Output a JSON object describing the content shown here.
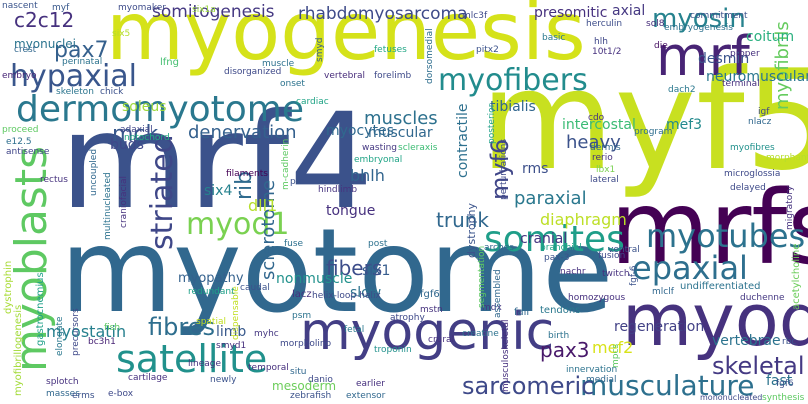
{
  "words": [
    {
      "text": "myogenesis",
      "color": "#d5e21a"
    },
    {
      "text": "mrf4",
      "color": "#3b528b"
    },
    {
      "text": "myf5",
      "color": "#c8e020"
    },
    {
      "text": "myotome",
      "color": "#31688e"
    },
    {
      "text": "mrfs",
      "color": "#440154"
    },
    {
      "text": "myod",
      "color": "#46327e"
    },
    {
      "text": "mrf",
      "color": "#482475"
    },
    {
      "text": "dermomyotome",
      "color": "#2a788e"
    },
    {
      "text": "myogenic",
      "color": "#433e85"
    },
    {
      "text": "myoblasts",
      "color": "#5ec962"
    },
    {
      "text": "satellite",
      "color": "#21918c"
    },
    {
      "text": "somites",
      "color": "#1f9e89"
    },
    {
      "text": "myofibers",
      "color": "#228c8d"
    },
    {
      "text": "myotubes",
      "color": "#2c728e"
    },
    {
      "text": "epaxial",
      "color": "#2e6f8e"
    },
    {
      "text": "hypaxial",
      "color": "#39568c"
    },
    {
      "text": "pax7",
      "color": "#35608d"
    },
    {
      "text": "myod1",
      "color": "#7ad151"
    },
    {
      "text": "striated",
      "color": "#3f4788"
    },
    {
      "text": "myosin",
      "color": "#26828e"
    },
    {
      "text": "musculature",
      "color": "#2d708e"
    },
    {
      "text": "sarcomeric",
      "color": "#3e4989"
    },
    {
      "text": "skeletal",
      "color": "#443983"
    },
    {
      "text": "somitogenesis",
      "color": "#453882"
    },
    {
      "text": "rhabdomyosarcoma",
      "color": "#3e4a89"
    },
    {
      "text": "c2c12",
      "color": "#46317e"
    },
    {
      "text": "fibres",
      "color": "#2e6e8e"
    },
    {
      "text": "myostatin",
      "color": "#27808e"
    },
    {
      "text": "myf6",
      "color": "#404688"
    },
    {
      "text": "heavy",
      "color": "#3b528b"
    },
    {
      "text": "fibers",
      "color": "#3d4d8a"
    },
    {
      "text": "pax3",
      "color": "#48186a"
    },
    {
      "text": "rib",
      "color": "#2f6b8e"
    },
    {
      "text": "sclerotome",
      "color": "#31678e"
    },
    {
      "text": "denervation",
      "color": "#34608d"
    },
    {
      "text": "muscles",
      "color": "#2d718e"
    },
    {
      "text": "mck",
      "color": "#38588c"
    },
    {
      "text": "myofibrils",
      "color": "#65cb5e"
    },
    {
      "text": "trunk",
      "color": "#31688e"
    },
    {
      "text": "paraxial",
      "color": "#2a788e"
    },
    {
      "text": "diaphragm",
      "color": "#bddf26"
    },
    {
      "text": "soleus",
      "color": "#9fda3a"
    },
    {
      "text": "desmin",
      "color": "#3a548c"
    },
    {
      "text": "neuromuscular",
      "color": "#2a778e"
    },
    {
      "text": "presomitic",
      "color": "#46307e"
    },
    {
      "text": "axial",
      "color": "#453882"
    },
    {
      "text": "coitum",
      "color": "#2ab07f"
    },
    {
      "text": "myocytes",
      "color": "#30698e"
    },
    {
      "text": "contractile",
      "color": "#2d708e"
    },
    {
      "text": "muscular",
      "color": "#31688e"
    },
    {
      "text": "intercostal",
      "color": "#3bbb75"
    },
    {
      "text": "tibialis",
      "color": "#31668e"
    },
    {
      "text": "mef3",
      "color": "#238a8d"
    },
    {
      "text": "mef2",
      "color": "#d8e219"
    },
    {
      "text": "bhlh",
      "color": "#32658e"
    },
    {
      "text": "six4",
      "color": "#26828e"
    },
    {
      "text": "dll1",
      "color": "#b5de2b"
    },
    {
      "text": "six1",
      "color": "#365c8d"
    },
    {
      "text": "slow",
      "color": "#2c728e"
    },
    {
      "text": "rms",
      "color": "#3c4f8a"
    },
    {
      "text": "cranial",
      "color": "#453581"
    },
    {
      "text": "dystrophy",
      "color": "#3a538b"
    },
    {
      "text": "myopathy",
      "color": "#34618d"
    },
    {
      "text": "nonmuscle",
      "color": "#21918c"
    },
    {
      "text": "tongue",
      "color": "#46307e"
    },
    {
      "text": "myonuclei",
      "color": "#2b748e"
    },
    {
      "text": "buds",
      "color": "#3f4889"
    },
    {
      "text": "limb",
      "color": "#38598c"
    },
    {
      "text": "regeneration",
      "color": "#424186"
    },
    {
      "text": "vertebrae",
      "color": "#2c738e"
    },
    {
      "text": "fast",
      "color": "#2c738e"
    },
    {
      "text": "mesoderm",
      "color": "#6ccd5a"
    },
    {
      "text": "dystrophin",
      "color": "#1fa088"
    },
    {
      "text": "myofibrillogenesis",
      "color": "#a8db34"
    },
    {
      "text": "dispensable",
      "color": "#a2da37"
    },
    {
      "text": "acetylcholine",
      "color": "#c2df23"
    },
    {
      "text": "migratory",
      "color": "#6ccd5a"
    },
    {
      "text": "gastrocnemius",
      "color": "#46337f"
    },
    {
      "text": "myf",
      "color": "#38588c"
    },
    {
      "text": "myomaker",
      "color": "#3e4c8a"
    },
    {
      "text": "six1a",
      "color": "#9bd93c"
    },
    {
      "text": "herculin",
      "color": "#3d4d8a"
    },
    {
      "text": "commitment",
      "color": "#3b528b"
    },
    {
      "text": "embryogenesis",
      "color": "#2d718e"
    },
    {
      "text": "nascent",
      "color": "#3a548c"
    },
    {
      "text": "crest",
      "color": "#31678e"
    },
    {
      "text": "embryo",
      "color": "#482677"
    },
    {
      "text": "perinatal",
      "color": "#2c738e"
    },
    {
      "text": "lfng",
      "color": "#44bf70"
    },
    {
      "text": "skeleton",
      "color": "#2b758e"
    },
    {
      "text": "chick",
      "color": "#3b518b"
    },
    {
      "text": "disorganized",
      "color": "#3e4989"
    },
    {
      "text": "onset",
      "color": "#2c738e"
    },
    {
      "text": "vertebral",
      "color": "#472c7a"
    },
    {
      "text": "forelimb",
      "color": "#3e4a89"
    },
    {
      "text": "fetuses",
      "color": "#22a785"
    },
    {
      "text": "dorsomedial",
      "color": "#2e6e8e"
    },
    {
      "text": "pitx2",
      "color": "#3b528b"
    },
    {
      "text": "basic",
      "color": "#2a788e"
    },
    {
      "text": "hlh",
      "color": "#3f4788"
    },
    {
      "text": "10t1/2",
      "color": "#46307e"
    },
    {
      "text": "die",
      "color": "#471063"
    },
    {
      "text": "proper",
      "color": "#46307e"
    },
    {
      "text": "terminal",
      "color": "#46307e"
    },
    {
      "text": "dach2",
      "color": "#2a788e"
    },
    {
      "text": "smyd",
      "color": "#355e8d"
    },
    {
      "text": "mlc3f",
      "color": "#3e4a89"
    },
    {
      "text": "sol8",
      "color": "#472d7b"
    },
    {
      "text": "six5",
      "color": "#b5de2b"
    },
    {
      "text": "muscle",
      "color": "#2d718e"
    },
    {
      "text": "proceed",
      "color": "#5ec962"
    },
    {
      "text": "notochord",
      "color": "#25ab82"
    },
    {
      "text": "adaxial",
      "color": "#404588"
    },
    {
      "text": "cardiac",
      "color": "#20a486"
    },
    {
      "text": "scleraxis",
      "color": "#3dbc74"
    },
    {
      "text": "cdo",
      "color": "#46337f"
    },
    {
      "text": "program",
      "color": "#2e6e8e"
    },
    {
      "text": "igf",
      "color": "#3e4989"
    },
    {
      "text": "nlacz",
      "color": "#31688e"
    },
    {
      "text": "myofibres",
      "color": "#21918c"
    },
    {
      "text": "dermis",
      "color": "#31688e"
    },
    {
      "text": "rerio",
      "color": "#46327e"
    },
    {
      "text": "lbx1",
      "color": "#7ad151"
    },
    {
      "text": "lateral",
      "color": "#3e4a89"
    },
    {
      "text": "e12.5",
      "color": "#2e6f8e"
    },
    {
      "text": "antisense",
      "color": "#404588"
    },
    {
      "text": "wasting",
      "color": "#453882"
    },
    {
      "text": "embryonal",
      "color": "#20a486"
    },
    {
      "text": "filaments",
      "color": "#440154"
    },
    {
      "text": "p.c",
      "color": "#3b528b"
    },
    {
      "text": "hindlimb",
      "color": "#46337f"
    },
    {
      "text": "m-cadherin",
      "color": "#5ec962"
    },
    {
      "text": "uncoupled",
      "color": "#31688e"
    },
    {
      "text": "multinucleated",
      "color": "#2c728e"
    },
    {
      "text": "craniofacial",
      "color": "#46327e"
    },
    {
      "text": "fuse",
      "color": "#2d708e"
    },
    {
      "text": "rectus",
      "color": "#46327e"
    },
    {
      "text": "post",
      "color": "#2d718e"
    },
    {
      "text": "posterior",
      "color": "#1fa088"
    },
    {
      "text": "arches",
      "color": "#31688e"
    },
    {
      "text": "branchial",
      "color": "#20a486"
    },
    {
      "text": "pax-3",
      "color": "#3b528b"
    },
    {
      "text": "nachr",
      "color": "#46307e"
    },
    {
      "text": "fusion",
      "color": "#3e4a89"
    },
    {
      "text": "twitch",
      "color": "#46307e"
    },
    {
      "text": "ventral",
      "color": "#3b528b"
    },
    {
      "text": "fgf-6",
      "color": "#3b528b"
    },
    {
      "text": "microglossia",
      "color": "#3e4989"
    },
    {
      "text": "delayed",
      "color": "#3e4a89"
    },
    {
      "text": "undifferentiated",
      "color": "#2c738e"
    },
    {
      "text": "duchenne",
      "color": "#453882"
    },
    {
      "text": "helix-loop-helix",
      "color": "#3e4a89"
    },
    {
      "text": "mdx",
      "color": "#453882"
    },
    {
      "text": "fail",
      "color": "#31688e"
    },
    {
      "text": "tendons",
      "color": "#2a788e"
    },
    {
      "text": "redundant",
      "color": "#1fa088"
    },
    {
      "text": "caudal",
      "color": "#3b528b"
    },
    {
      "text": "lacz",
      "color": "#46307e"
    },
    {
      "text": "fgf6",
      "color": "#31688e"
    },
    {
      "text": "psm",
      "color": "#2c738e"
    },
    {
      "text": "fetal",
      "color": "#2a788e"
    },
    {
      "text": "atrophy",
      "color": "#3e4989"
    },
    {
      "text": "mstn",
      "color": "#46327e"
    },
    {
      "text": "mlclf",
      "color": "#31688e"
    },
    {
      "text": "homozygous",
      "color": "#46307e"
    },
    {
      "text": "elongate",
      "color": "#2a788e"
    },
    {
      "text": "precursors",
      "color": "#3e4989"
    },
    {
      "text": "bc3h1",
      "color": "#482475"
    },
    {
      "text": "fish",
      "color": "#5ec962"
    },
    {
      "text": "myhc",
      "color": "#453882"
    },
    {
      "text": "smyd1",
      "color": "#46307e"
    },
    {
      "text": "morpholino",
      "color": "#3e4989"
    },
    {
      "text": "lineage",
      "color": "#46327e"
    },
    {
      "text": "situ",
      "color": "#31688e"
    },
    {
      "text": "spatial",
      "color": "#c2df23"
    },
    {
      "text": "cartilage",
      "color": "#46307e"
    },
    {
      "text": "splotch",
      "color": "#46307e"
    },
    {
      "text": "masses",
      "color": "#31688e"
    },
    {
      "text": "e-box",
      "color": "#3e4989"
    },
    {
      "text": "erms",
      "color": "#3b528b"
    },
    {
      "text": "temporal",
      "color": "#46307e"
    },
    {
      "text": "newly",
      "color": "#3b528b"
    },
    {
      "text": "danio",
      "color": "#3e4989"
    },
    {
      "text": "zebrafish",
      "color": "#3b528b"
    },
    {
      "text": "earlier",
      "color": "#46307e"
    },
    {
      "text": "extensor",
      "color": "#31688e"
    },
    {
      "text": "troponin",
      "color": "#21918c"
    },
    {
      "text": "crural",
      "color": "#46307e"
    },
    {
      "text": "creatine",
      "color": "#2c728e"
    },
    {
      "text": "segmentation",
      "color": "#5ec962"
    },
    {
      "text": "assembled",
      "color": "#31688e"
    },
    {
      "text": "musculoskeletal",
      "color": "#46307e"
    },
    {
      "text": "birth",
      "color": "#2c728e"
    },
    {
      "text": "innervation",
      "color": "#2c738e"
    },
    {
      "text": "medial",
      "color": "#31688e"
    },
    {
      "text": "mpcs",
      "color": "#5ec962"
    },
    {
      "text": "morphant",
      "color": "#b5de2b"
    },
    {
      "text": "perturbations",
      "color": "#3e4989"
    },
    {
      "text": "synthesis",
      "color": "#5ec962"
    },
    {
      "text": "mononucleated",
      "color": "#3e4989"
    },
    {
      "text": "rbc",
      "color": "#3b528b"
    },
    {
      "text": "fgf6",
      "color": "#3b528b"
    }
  ]
}
